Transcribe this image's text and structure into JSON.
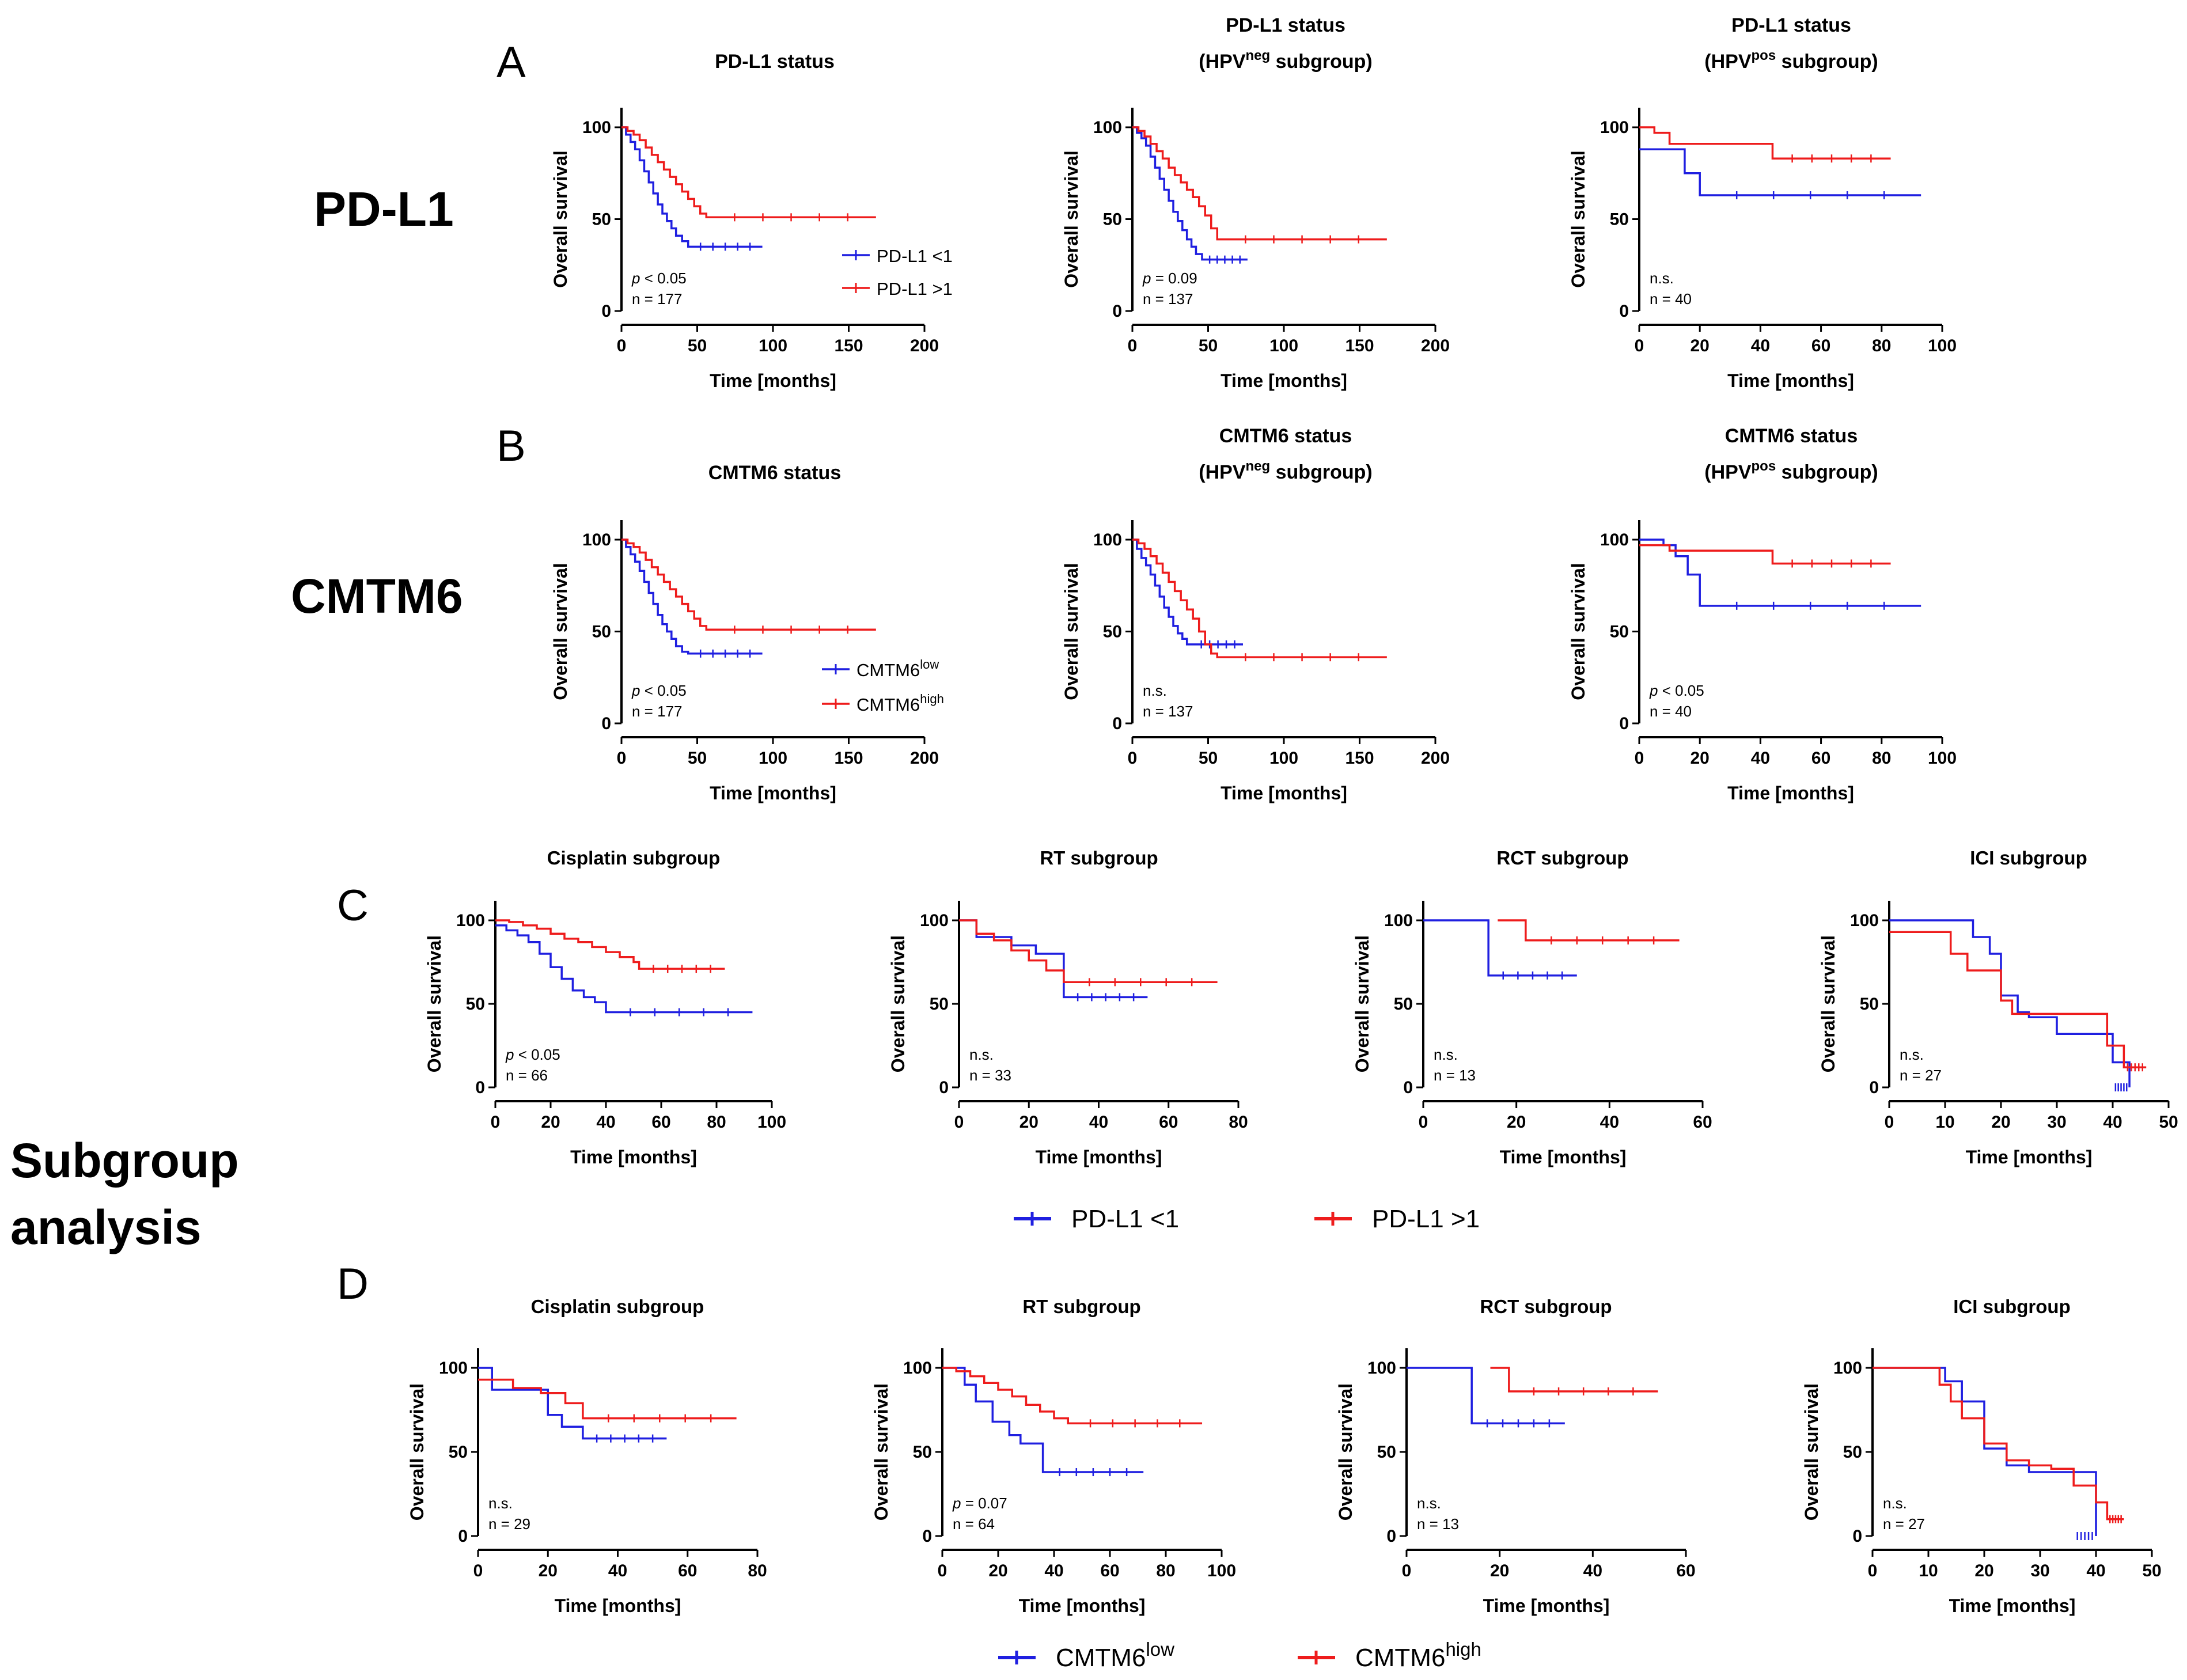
{
  "row_labels": [
    {
      "key": "pdl1",
      "text": "PD-L1"
    },
    {
      "key": "cmtm6",
      "text": "CMTM6"
    },
    {
      "key": "sub1",
      "text": "Subgroup"
    },
    {
      "key": "sub2",
      "text": "analysis"
    }
  ],
  "panel_letters": [
    "A",
    "B",
    "C",
    "D"
  ],
  "legends": {
    "pdl1": {
      "low": "PD-L1 <1",
      "high": "PD-L1 >1"
    },
    "cmtm6": {
      "base": "CMTM6",
      "low_sup": "low",
      "high_sup": "high"
    }
  },
  "colors": {
    "low": "#1f1fe0",
    "high": "#ee1c1c"
  },
  "chart_data": [
    {
      "id": "A1",
      "type": "line",
      "title": "PD-L1 status",
      "xlabel": "Time [months]",
      "ylabel": "Overall survival",
      "xlim": [
        0,
        200
      ],
      "xticks": [
        0,
        50,
        100,
        150,
        200
      ],
      "ylim": [
        0,
        100
      ],
      "yticks": [
        0,
        50,
        100
      ],
      "stat_p_symbol": "p",
      "stat_p_rest": " < 0.05",
      "stat_n": "n = 177",
      "series": [
        {
          "name": "PD-L1 <1",
          "x": [
            0,
            3,
            6,
            9,
            12,
            15,
            18,
            21,
            24,
            27,
            30,
            33,
            36,
            40,
            44,
            93
          ],
          "y": [
            100,
            96,
            92,
            88,
            82,
            76,
            70,
            64,
            58,
            53,
            49,
            45,
            41,
            38,
            35,
            35
          ]
        },
        {
          "name": "PD-L1 >1",
          "x": [
            0,
            4,
            8,
            12,
            16,
            20,
            24,
            28,
            32,
            36,
            40,
            44,
            48,
            52,
            56,
            168
          ],
          "y": [
            100,
            98,
            96,
            93,
            89,
            85,
            81,
            77,
            73,
            69,
            65,
            61,
            57,
            53,
            51,
            51
          ]
        }
      ]
    },
    {
      "id": "A2",
      "type": "line",
      "title_lines": [
        "PD-L1 status",
        "(HPV",
        "neg",
        " subgroup)"
      ],
      "xlabel": "Time [months]",
      "ylabel": "Overall survival",
      "xlim": [
        0,
        200
      ],
      "xticks": [
        0,
        50,
        100,
        150,
        200
      ],
      "ylim": [
        0,
        100
      ],
      "yticks": [
        0,
        50,
        100
      ],
      "stat_p_symbol": "p",
      "stat_p_rest": " = 0.09",
      "stat_n": "n = 137",
      "series": [
        {
          "name": "PD-L1 <1",
          "x": [
            0,
            3,
            6,
            9,
            12,
            15,
            18,
            21,
            24,
            27,
            30,
            33,
            36,
            39,
            42,
            46,
            76
          ],
          "y": [
            100,
            97,
            94,
            90,
            84,
            78,
            72,
            66,
            60,
            54,
            49,
            44,
            39,
            35,
            31,
            28,
            28
          ]
        },
        {
          "name": "PD-L1 >1",
          "x": [
            0,
            4,
            8,
            12,
            16,
            20,
            24,
            28,
            32,
            36,
            40,
            44,
            48,
            52,
            56,
            168
          ],
          "y": [
            100,
            98,
            95,
            91,
            87,
            83,
            78,
            74,
            70,
            66,
            62,
            57,
            52,
            45,
            39,
            39
          ]
        }
      ]
    },
    {
      "id": "A3",
      "type": "line",
      "title_lines": [
        "PD-L1 status",
        "(HPV",
        "pos",
        " subgroup)"
      ],
      "xlabel": "Time [months]",
      "ylabel": "Overall survival",
      "xlim": [
        0,
        100
      ],
      "xticks": [
        0,
        20,
        40,
        60,
        80,
        100
      ],
      "ylim": [
        0,
        100
      ],
      "yticks": [
        0,
        50,
        100
      ],
      "stat_n_sig": "n.s.",
      "stat_n": "n = 40",
      "series": [
        {
          "name": "PD-L1 <1",
          "x": [
            0,
            15,
            20,
            93
          ],
          "y": [
            88,
            75,
            63,
            63
          ]
        },
        {
          "name": "PD-L1 >1",
          "x": [
            0,
            5,
            10,
            44,
            83
          ],
          "y": [
            100,
            97,
            91,
            83,
            83
          ]
        }
      ]
    },
    {
      "id": "B1",
      "type": "line",
      "title": "CMTM6 status",
      "xlabel": "Time [months]",
      "ylabel": "Overall survival",
      "xlim": [
        0,
        200
      ],
      "xticks": [
        0,
        50,
        100,
        150,
        200
      ],
      "ylim": [
        0,
        100
      ],
      "yticks": [
        0,
        50,
        100
      ],
      "stat_p_symbol": "p",
      "stat_p_rest": " < 0.05",
      "stat_n": "n = 177",
      "series": [
        {
          "name": "CMTM6 low",
          "x": [
            0,
            3,
            6,
            9,
            12,
            15,
            18,
            21,
            24,
            27,
            30,
            33,
            36,
            40,
            44,
            93
          ],
          "y": [
            100,
            96,
            92,
            88,
            83,
            77,
            71,
            65,
            59,
            54,
            50,
            46,
            42,
            39,
            38,
            38
          ]
        },
        {
          "name": "CMTM6 high",
          "x": [
            0,
            4,
            8,
            12,
            16,
            20,
            24,
            28,
            32,
            36,
            40,
            44,
            48,
            52,
            56,
            168
          ],
          "y": [
            100,
            98,
            96,
            93,
            89,
            85,
            81,
            77,
            73,
            69,
            65,
            61,
            57,
            53,
            51,
            51
          ]
        }
      ]
    },
    {
      "id": "B2",
      "type": "line",
      "title_lines": [
        "CMTM6 status",
        "(HPV",
        "neg",
        " subgroup)"
      ],
      "xlabel": "Time [months]",
      "ylabel": "Overall survival",
      "xlim": [
        0,
        200
      ],
      "xticks": [
        0,
        50,
        100,
        150,
        200
      ],
      "ylim": [
        0,
        100
      ],
      "yticks": [
        0,
        50,
        100
      ],
      "stat_n_sig": "n.s.",
      "stat_n": "n = 137",
      "series": [
        {
          "name": "CMTM6 low",
          "x": [
            0,
            3,
            6,
            9,
            12,
            15,
            18,
            21,
            24,
            27,
            30,
            33,
            36,
            40,
            73
          ],
          "y": [
            100,
            95,
            90,
            86,
            81,
            75,
            69,
            63,
            58,
            53,
            49,
            46,
            43,
            43,
            43
          ]
        },
        {
          "name": "CMTM6 high",
          "x": [
            0,
            4,
            8,
            12,
            16,
            20,
            24,
            28,
            32,
            36,
            40,
            44,
            48,
            52,
            56,
            168
          ],
          "y": [
            100,
            98,
            95,
            91,
            87,
            82,
            77,
            72,
            67,
            62,
            57,
            50,
            43,
            38,
            36,
            36
          ]
        }
      ]
    },
    {
      "id": "B3",
      "type": "line",
      "title_lines": [
        "CMTM6 status",
        "(HPV",
        "pos",
        " subgroup)"
      ],
      "xlabel": "Time [months]",
      "ylabel": "Overall survival",
      "xlim": [
        0,
        100
      ],
      "xticks": [
        0,
        20,
        40,
        60,
        80,
        100
      ],
      "ylim": [
        0,
        100
      ],
      "yticks": [
        0,
        50,
        100
      ],
      "stat_p_symbol": "p",
      "stat_p_rest": " < 0.05",
      "stat_n": "n = 40",
      "series": [
        {
          "name": "CMTM6 low",
          "x": [
            0,
            8,
            12,
            16,
            20,
            93
          ],
          "y": [
            100,
            97,
            91,
            81,
            64,
            64
          ]
        },
        {
          "name": "CMTM6 high",
          "x": [
            0,
            5,
            10,
            44,
            83
          ],
          "y": [
            97,
            97,
            94,
            87,
            87
          ]
        }
      ]
    },
    {
      "id": "C1",
      "type": "line",
      "title": "Cisplatin subgroup",
      "xlabel": "Time [months]",
      "ylabel": "Overall survival",
      "xlim": [
        0,
        100
      ],
      "xticks": [
        0,
        20,
        40,
        60,
        80,
        100
      ],
      "ylim": [
        0,
        100
      ],
      "yticks": [
        0,
        50,
        100
      ],
      "stat_p_symbol": "p",
      "stat_p_rest": " < 0.05",
      "stat_n": "n = 66",
      "series": [
        {
          "name": "PD-L1 <1",
          "x": [
            0,
            4,
            8,
            12,
            16,
            20,
            24,
            28,
            32,
            36,
            40,
            93
          ],
          "y": [
            97,
            94,
            91,
            87,
            80,
            72,
            65,
            58,
            54,
            51,
            45,
            45
          ]
        },
        {
          "name": "PD-L1 >1",
          "x": [
            0,
            5,
            10,
            15,
            20,
            25,
            30,
            35,
            40,
            45,
            50,
            52,
            83
          ],
          "y": [
            100,
            99,
            97,
            95,
            92,
            89,
            87,
            84,
            81,
            78,
            75,
            71,
            71
          ]
        }
      ]
    },
    {
      "id": "C2",
      "type": "line",
      "title": "RT subgroup",
      "xlabel": "Time [months]",
      "ylabel": "Overall survival",
      "xlim": [
        0,
        80
      ],
      "xticks": [
        0,
        20,
        40,
        60,
        80
      ],
      "ylim": [
        0,
        100
      ],
      "yticks": [
        0,
        50,
        100
      ],
      "stat_n_sig": "n.s.",
      "stat_n": "n = 33",
      "series": [
        {
          "name": "PD-L1 <1",
          "x": [
            0,
            5,
            15,
            22,
            30,
            54
          ],
          "y": [
            100,
            90,
            85,
            80,
            54,
            54
          ]
        },
        {
          "name": "PD-L1 >1",
          "x": [
            0,
            5,
            10,
            15,
            20,
            25,
            30,
            74
          ],
          "y": [
            100,
            92,
            88,
            82,
            76,
            70,
            63,
            63
          ]
        }
      ]
    },
    {
      "id": "C3",
      "type": "line",
      "title": "RCT subgroup",
      "xlabel": "Time [months]",
      "ylabel": "Overall survival",
      "xlim": [
        0,
        60
      ],
      "xticks": [
        0,
        20,
        40,
        60
      ],
      "ylim": [
        0,
        100
      ],
      "yticks": [
        0,
        50,
        100
      ],
      "stat_n_sig": "n.s.",
      "stat_n": "n = 13",
      "series": [
        {
          "name": "PD-L1 <1",
          "x": [
            0,
            14,
            33
          ],
          "y": [
            100,
            67,
            67
          ]
        },
        {
          "name": "PD-L1 >1",
          "x": [
            16,
            22,
            55
          ],
          "y": [
            100,
            88,
            88
          ]
        }
      ]
    },
    {
      "id": "C4",
      "type": "line",
      "title": "ICI subgroup",
      "xlabel": "Time [months]",
      "ylabel": "Overall survival",
      "xlim": [
        0,
        50
      ],
      "xticks": [
        0,
        10,
        20,
        30,
        40,
        50
      ],
      "ylim": [
        0,
        100
      ],
      "yticks": [
        0,
        50,
        100
      ],
      "stat_n_sig": "n.s.",
      "stat_n": "n = 27",
      "series": [
        {
          "name": "PD-L1 <1",
          "x": [
            0,
            12,
            15,
            18,
            20,
            23,
            25,
            30,
            37,
            40,
            43
          ],
          "y": [
            100,
            100,
            90,
            80,
            55,
            45,
            42,
            32,
            32,
            15,
            0
          ]
        },
        {
          "name": "PD-L1 >1",
          "x": [
            0,
            9,
            11,
            14,
            20,
            22,
            28,
            35,
            39,
            42,
            46
          ],
          "y": [
            93,
            93,
            80,
            70,
            52,
            44,
            44,
            44,
            25,
            12,
            12
          ]
        }
      ]
    },
    {
      "id": "D1",
      "type": "line",
      "title": "Cisplatin subgroup",
      "xlabel": "Time [months]",
      "ylabel": "Overall survival",
      "xlim": [
        0,
        80
      ],
      "xticks": [
        0,
        20,
        40,
        60,
        80
      ],
      "ylim": [
        0,
        100
      ],
      "yticks": [
        0,
        50,
        100
      ],
      "stat_n_sig": "n.s.",
      "stat_n": "n = 29",
      "series": [
        {
          "name": "CMTM6 low",
          "x": [
            0,
            4,
            16,
            20,
            24,
            30,
            54
          ],
          "y": [
            100,
            87,
            87,
            72,
            65,
            58,
            58
          ]
        },
        {
          "name": "CMTM6 high",
          "x": [
            0,
            4,
            10,
            18,
            25,
            30,
            74
          ],
          "y": [
            93,
            93,
            88,
            85,
            79,
            70,
            70
          ]
        }
      ]
    },
    {
      "id": "D2",
      "type": "line",
      "title": "RT subgroup",
      "xlabel": "Time [months]",
      "ylabel": "Overall survival",
      "xlim": [
        0,
        100
      ],
      "xticks": [
        0,
        20,
        40,
        60,
        80,
        100
      ],
      "ylim": [
        0,
        100
      ],
      "yticks": [
        0,
        50,
        100
      ],
      "stat_p_symbol": "p",
      "stat_p_rest": " = 0.07",
      "stat_n": "n = 64",
      "series": [
        {
          "name": "CMTM6 low",
          "x": [
            0,
            8,
            12,
            18,
            24,
            28,
            36,
            72
          ],
          "y": [
            100,
            90,
            80,
            68,
            60,
            55,
            38,
            38
          ]
        },
        {
          "name": "CMTM6 high",
          "x": [
            0,
            5,
            10,
            15,
            20,
            25,
            30,
            35,
            40,
            45,
            93
          ],
          "y": [
            100,
            98,
            95,
            91,
            87,
            83,
            78,
            74,
            70,
            67,
            67
          ]
        }
      ]
    },
    {
      "id": "D3",
      "type": "line",
      "title": "RCT subgroup",
      "xlabel": "Time [months]",
      "ylabel": "Overall survival",
      "xlim": [
        0,
        60
      ],
      "xticks": [
        0,
        20,
        40,
        60
      ],
      "ylim": [
        0,
        100
      ],
      "yticks": [
        0,
        50,
        100
      ],
      "stat_n_sig": "n.s.",
      "stat_n": "n = 13",
      "series": [
        {
          "name": "CMTM6 low",
          "x": [
            0,
            14,
            34
          ],
          "y": [
            100,
            67,
            67
          ]
        },
        {
          "name": "CMTM6 high",
          "x": [
            18,
            22,
            54
          ],
          "y": [
            100,
            86,
            86
          ]
        }
      ]
    },
    {
      "id": "D4",
      "type": "line",
      "title": "ICI subgroup",
      "xlabel": "Time [months]",
      "ylabel": "Overall survival",
      "xlim": [
        0,
        50
      ],
      "xticks": [
        0,
        10,
        20,
        30,
        40,
        50
      ],
      "ylim": [
        0,
        100
      ],
      "yticks": [
        0,
        50,
        100
      ],
      "stat_n_sig": "n.s.",
      "stat_n": "n = 27",
      "series": [
        {
          "name": "CMTM6 low",
          "x": [
            0,
            10,
            13,
            16,
            20,
            24,
            28,
            32,
            36,
            40
          ],
          "y": [
            100,
            100,
            92,
            80,
            52,
            42,
            38,
            38,
            38,
            0
          ]
        },
        {
          "name": "CMTM6 high",
          "x": [
            0,
            10,
            12,
            14,
            16,
            20,
            24,
            28,
            32,
            36,
            40,
            42,
            45
          ],
          "y": [
            100,
            100,
            90,
            80,
            70,
            55,
            45,
            42,
            40,
            30,
            20,
            10,
            10
          ]
        }
      ]
    }
  ]
}
